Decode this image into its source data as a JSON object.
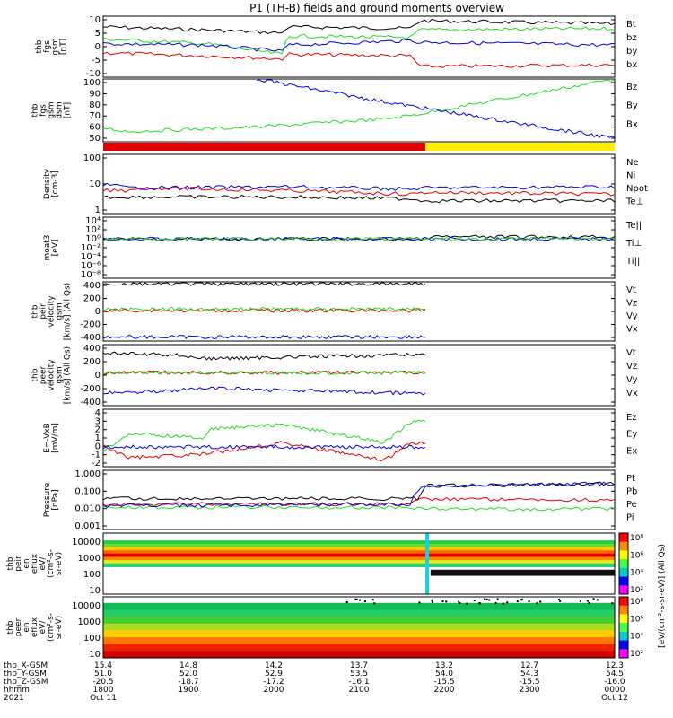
{
  "title": "P1 (TH-B) fields and ground moments overview",
  "colors": {
    "black": "#000000",
    "red": "#e00000",
    "green": "#22dd22",
    "blue": "#0000e0",
    "yellow": "#ffee00"
  },
  "chart_data": [
    {
      "type": "line",
      "panel": "fgs-gsm",
      "ylabel": [
        "thb",
        "fgs",
        "gsm",
        "[nT]"
      ],
      "yticks": [
        "10",
        "5",
        "0",
        "-5",
        "-10"
      ],
      "ylim": [
        -10,
        10
      ],
      "series": [
        {
          "name": "Bt",
          "color": "black",
          "x": [
            0.0,
            0.2,
            0.35,
            0.36,
            0.6,
            0.62,
            1.0
          ],
          "y": [
            6.5,
            5.5,
            4.5,
            6.5,
            6.0,
            8.5,
            7.5
          ]
        },
        {
          "name": "bz",
          "color": "red",
          "x": [
            0.0,
            0.2,
            0.35,
            0.36,
            0.6,
            0.62,
            1.0
          ],
          "y": [
            -2.0,
            -3.0,
            -4.0,
            -2.5,
            -3.0,
            -6.5,
            -6.0
          ]
        },
        {
          "name": "by",
          "color": "green",
          "x": [
            0.0,
            0.2,
            0.35,
            0.36,
            0.6,
            0.62,
            1.0
          ],
          "y": [
            2.5,
            1.0,
            -2.5,
            3.5,
            3.0,
            5.5,
            6.0
          ]
        },
        {
          "name": "bx",
          "color": "blue",
          "x": [
            0.0,
            0.2,
            0.35,
            0.36,
            0.6,
            0.62,
            1.0
          ],
          "y": [
            1.0,
            0.5,
            -1.5,
            0.5,
            2.0,
            1.5,
            0.5
          ]
        }
      ]
    },
    {
      "type": "line",
      "panel": "fgs-gsm-dsm",
      "ylabel": [
        "thb",
        "fgs",
        "gsm",
        "dsm",
        "[nT]"
      ],
      "yticks": [
        "100",
        "90",
        "80",
        "70",
        "60",
        "50"
      ],
      "ylim": [
        45,
        100
      ],
      "series": [
        {
          "name": "Bz",
          "color": "red",
          "x": [],
          "y": []
        },
        {
          "name": "By",
          "color": "green",
          "x": [
            0.0,
            0.05,
            0.3,
            0.55,
            0.6,
            1.0
          ],
          "y": [
            57,
            54,
            58,
            65,
            68,
            100
          ]
        },
        {
          "name": "Bx",
          "color": "blue",
          "x": [
            0.3,
            0.55,
            0.8,
            1.0
          ],
          "y": [
            100,
            80,
            62,
            48
          ]
        }
      ]
    },
    {
      "type": "bar",
      "panel": "mode-bar",
      "segments": [
        {
          "x0": 0.0,
          "x1": 0.63,
          "color": "red"
        },
        {
          "x0": 0.63,
          "x1": 1.0,
          "color": "yellow"
        }
      ]
    },
    {
      "type": "line",
      "panel": "density",
      "ylabel": [
        "Density",
        "[cm-3]"
      ],
      "yticks": [
        "100",
        "10",
        "1"
      ],
      "ylog": true,
      "ylim": [
        0.5,
        300
      ],
      "series": [
        {
          "name": "Ne",
          "color": "red",
          "x": [
            0.0,
            0.05,
            0.06,
            0.36,
            0.6,
            0.63,
            1.0
          ],
          "y": [
            6,
            6,
            8,
            6,
            4,
            5,
            4
          ]
        },
        {
          "name": "Ni",
          "color": "black",
          "x": [
            0.0,
            0.36,
            0.6,
            0.63,
            1.0
          ],
          "y": [
            3,
            3,
            2.5,
            2,
            2
          ]
        },
        {
          "name": "Npot",
          "color": "blue",
          "x": [
            0.0,
            0.05,
            0.36,
            0.6,
            0.63,
            1.0
          ],
          "y": [
            12,
            8,
            9,
            7,
            8,
            9
          ]
        },
        {
          "name": "Te⊥",
          "color": "red",
          "x": [],
          "y": []
        }
      ]
    },
    {
      "type": "line",
      "panel": "temperature",
      "ylabel": [
        "moat3",
        "[eV]"
      ],
      "yticks": [
        "10⁴",
        "10²",
        "10⁰",
        "10⁻²",
        "10⁻⁴",
        "10⁻⁶",
        "10⁻⁸"
      ],
      "ylog": true,
      "series": [
        {
          "name": "Te||",
          "color": "black",
          "x": [
            0.0,
            0.63,
            0.64,
            1.0
          ],
          "y": [
            1,
            1,
            3,
            3
          ]
        },
        {
          "name": "Ti⊥",
          "color": "blue",
          "x": [
            0.0,
            0.63,
            1.0
          ],
          "y": [
            1,
            1,
            1
          ]
        },
        {
          "name": "Ti||",
          "color": "green",
          "x": [
            0.0,
            0.63,
            1.0
          ],
          "y": [
            1,
            1,
            1
          ]
        }
      ]
    },
    {
      "type": "line",
      "panel": "peir-velocity",
      "ylabel": [
        "thb",
        "peir",
        "velocity",
        "gsm",
        "[km/s] (All Qs)"
      ],
      "yticks": [
        "400",
        "200",
        "0",
        "-200",
        "-400"
      ],
      "ylim": [
        -450,
        420
      ],
      "series": [
        {
          "name": "Vt",
          "color": "black",
          "x": [
            0.0,
            0.63
          ],
          "y": [
            390,
            390
          ]
        },
        {
          "name": "Vz",
          "color": "red",
          "x": [
            0.0,
            0.63
          ],
          "y": [
            0,
            0
          ]
        },
        {
          "name": "Vy",
          "color": "green",
          "x": [
            0.0,
            0.63
          ],
          "y": [
            20,
            20
          ]
        },
        {
          "name": "Vx",
          "color": "blue",
          "x": [
            0.0,
            0.63
          ],
          "y": [
            -390,
            -390
          ]
        }
      ]
    },
    {
      "type": "line",
      "panel": "peer-velocity",
      "ylabel": [
        "thb",
        "peer",
        "velocity",
        "gsm",
        "[km/s] (All Qs)"
      ],
      "yticks": [
        "400",
        "200",
        "0",
        "-200",
        "-400"
      ],
      "ylim": [
        -450,
        420
      ],
      "series": [
        {
          "name": "Vt",
          "color": "black",
          "x": [
            0.0,
            0.15,
            0.2,
            0.63
          ],
          "y": [
            300,
            270,
            220,
            280
          ]
        },
        {
          "name": "Vz",
          "color": "red",
          "x": [
            0.0,
            0.63
          ],
          "y": [
            20,
            20
          ]
        },
        {
          "name": "Vy",
          "color": "green",
          "x": [
            0.0,
            0.63
          ],
          "y": [
            20,
            20
          ]
        },
        {
          "name": "Vx",
          "color": "blue",
          "x": [
            0.0,
            0.15,
            0.2,
            0.63
          ],
          "y": [
            -270,
            -230,
            -200,
            -280
          ]
        }
      ]
    },
    {
      "type": "line",
      "panel": "efield",
      "ylabel": [
        "E=-VxB",
        "[mV/m]"
      ],
      "yticks": [
        "4",
        "3",
        "2",
        "1",
        "0",
        "-1",
        "-2"
      ],
      "ylim": [
        -2.2,
        4.2
      ],
      "series": [
        {
          "name": "Ez",
          "color": "red",
          "x": [
            0.0,
            0.05,
            0.2,
            0.35,
            0.45,
            0.55,
            0.6,
            0.63
          ],
          "y": [
            0.2,
            -1.2,
            -0.8,
            0.5,
            -0.5,
            -1.5,
            0.4,
            0.5
          ]
        },
        {
          "name": "Ey",
          "color": "green",
          "x": [
            0.0,
            0.05,
            0.2,
            0.21,
            0.35,
            0.5,
            0.55,
            0.6,
            0.63
          ],
          "y": [
            -0.5,
            1.5,
            1.0,
            2.0,
            2.5,
            1.0,
            0.5,
            2.7,
            2.9
          ]
        },
        {
          "name": "Ex",
          "color": "blue",
          "x": [
            0.0,
            0.63
          ],
          "y": [
            0,
            0
          ]
        }
      ]
    },
    {
      "type": "line",
      "panel": "pressure",
      "ylabel": [
        "Pressure",
        "[nPa]"
      ],
      "yticks": [
        "1.000",
        "0.100",
        "0.010",
        "0.001"
      ],
      "ylog": true,
      "ylim": [
        0.0006,
        1.1
      ],
      "series": [
        {
          "name": "Pt",
          "color": "black",
          "x": [
            0.0,
            0.6,
            0.62,
            0.63,
            1.0
          ],
          "y": [
            0.03,
            0.03,
            0.03,
            0.15,
            0.2
          ]
        },
        {
          "name": "Pb",
          "color": "red",
          "x": [
            0.0,
            0.6,
            0.62,
            1.0
          ],
          "y": [
            0.015,
            0.015,
            0.03,
            0.025
          ]
        },
        {
          "name": "Pe",
          "color": "green",
          "x": [
            0.0,
            0.6,
            0.63,
            1.0
          ],
          "y": [
            0.01,
            0.01,
            0.008,
            0.008
          ]
        },
        {
          "name": "Pi",
          "color": "blue",
          "x": [
            0.0,
            0.6,
            0.63,
            1.0
          ],
          "y": [
            0.012,
            0.015,
            0.15,
            0.2
          ]
        }
      ]
    },
    {
      "type": "heatmap",
      "panel": "peir-spectrogram",
      "ylabel": [
        "thb",
        "peir",
        "en",
        "eflux",
        "eV/",
        "(cm²-s-",
        "sr-eV)"
      ],
      "yticks": [
        "10000",
        "1000",
        "100",
        "10"
      ]
    },
    {
      "type": "heatmap",
      "panel": "peer-spectrogram",
      "ylabel": [
        "thb",
        "peer",
        "en",
        "eflux",
        "eV/",
        "(cm²-s-",
        "sr-eV)"
      ],
      "yticks": [
        "10000",
        "1000",
        "100",
        "10"
      ]
    }
  ],
  "colorbar": {
    "ticks_top": [
      "10⁸",
      "10⁶",
      "10⁴",
      "10²"
    ],
    "ticks_bottom": [
      "10⁸",
      "10⁶",
      "10⁴",
      "10²"
    ],
    "label": "[eV/(cm²-s-sr-eV)] (All Qs)"
  },
  "xaxis": {
    "rows": [
      {
        "label": "thb_X-GSM",
        "values": [
          "15.4",
          "14.8",
          "14.2",
          "13.7",
          "13.2",
          "12.7",
          "12.3"
        ]
      },
      {
        "label": "thb_Y-GSM",
        "values": [
          "51.0",
          "52.0",
          "52.9",
          "53.5",
          "54.0",
          "54.3",
          "54.5"
        ]
      },
      {
        "label": "thb_Z-GSM",
        "values": [
          "-20.5",
          "-18.7",
          "-17.2",
          "-16.1",
          "-15.5",
          "-15.5",
          "-16.0"
        ]
      },
      {
        "label": "hhmm",
        "values": [
          "1800",
          "1900",
          "2000",
          "2100",
          "2200",
          "2300",
          "0000"
        ]
      }
    ],
    "year": "2021",
    "dates": [
      "Oct 11",
      "",
      "",
      "",
      "",
      "",
      "Oct 12"
    ]
  }
}
